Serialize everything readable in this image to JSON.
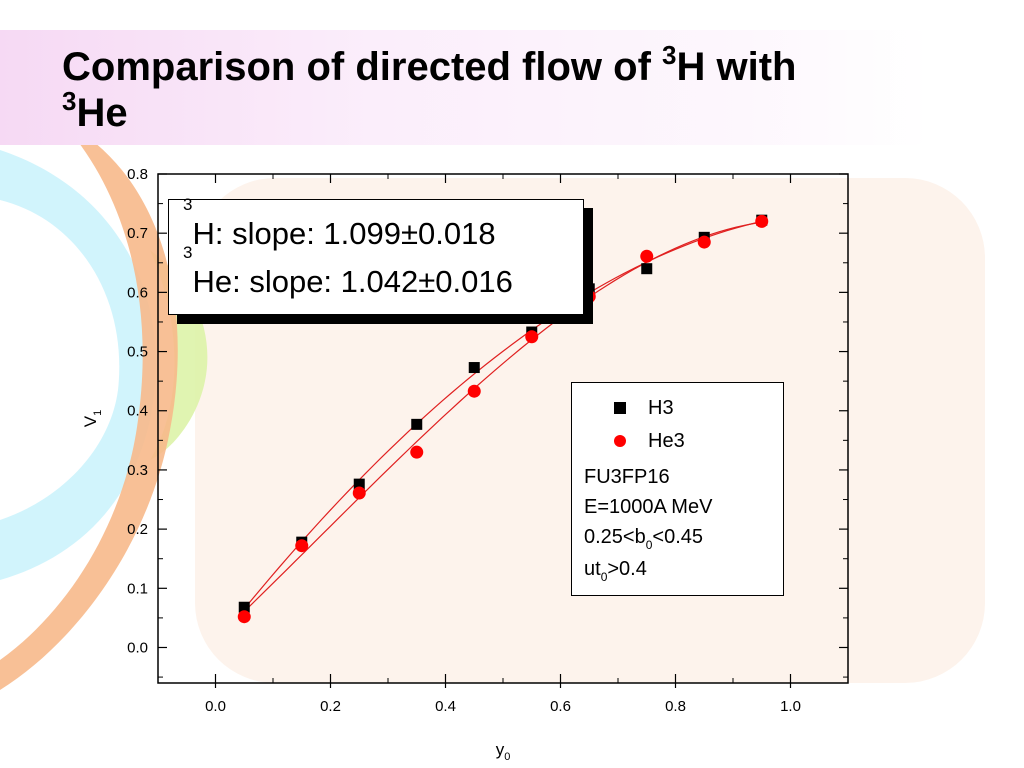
{
  "slide": {
    "title_prefix": "Comparison of directed flow of ",
    "title_sup1": "3",
    "title_mid": "H with",
    "title_sup2": "3",
    "title_suffix": "He"
  },
  "fit_box": {
    "line1_sup": "3",
    "line1_text": "H: slope: 1.099±0.018",
    "line2_sup": "3",
    "line2_text": "He: slope: 1.042±0.016"
  },
  "legend": {
    "series1_label": "H3",
    "series2_label": "He3",
    "note1": "FU3FP16",
    "note2": "E=1000A MeV",
    "note3_pre": "0.25<b",
    "note3_sub": "0",
    "note3_post": "<0.45",
    "note4_pre": "ut",
    "note4_sub": "0",
    "note4_post": ">0.4"
  },
  "chart_data": {
    "type": "scatter",
    "xlabel": "y",
    "xlabel_sub": "0",
    "ylabel": "V",
    "ylabel_sub": "1",
    "xlim": [
      -0.1,
      1.1
    ],
    "ylim": [
      -0.06,
      0.8
    ],
    "xticks": [
      0.0,
      0.2,
      0.4,
      0.6,
      0.8,
      1.0
    ],
    "xtick_labels": [
      "0.0",
      "0.2",
      "0.4",
      "0.6",
      "0.8",
      "1.0"
    ],
    "yticks": [
      0.0,
      0.1,
      0.2,
      0.3,
      0.4,
      0.5,
      0.6,
      0.7,
      0.8
    ],
    "ytick_labels": [
      "0.0",
      "0.1",
      "0.2",
      "0.3",
      "0.4",
      "0.5",
      "0.6",
      "0.7",
      "0.8"
    ],
    "grid": false,
    "series": [
      {
        "name": "H3",
        "marker": "square",
        "color": "#000000",
        "x": [
          0.05,
          0.15,
          0.25,
          0.35,
          0.45,
          0.55,
          0.65,
          0.75,
          0.85,
          0.95
        ],
        "y": [
          0.068,
          0.178,
          0.276,
          0.377,
          0.473,
          0.533,
          0.606,
          0.64,
          0.693,
          0.722
        ]
      },
      {
        "name": "He3",
        "marker": "circle",
        "color": "#ff0000",
        "x": [
          0.05,
          0.15,
          0.25,
          0.35,
          0.45,
          0.55,
          0.65,
          0.75,
          0.85,
          0.95
        ],
        "y": [
          0.052,
          0.172,
          0.261,
          0.33,
          0.433,
          0.525,
          0.593,
          0.661,
          0.685,
          0.72
        ]
      }
    ],
    "fit_color": "#e02020"
  },
  "colors": {
    "plot_panel": "#fdf3ec",
    "title_band": "#f6d9f4",
    "arc_orange": "#f6b483",
    "arc_cyan": "#bdeefa",
    "arc_green": "#d8f0a0"
  }
}
